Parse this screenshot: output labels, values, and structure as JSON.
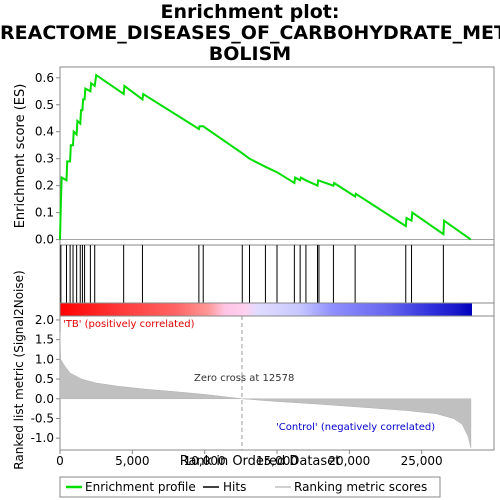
{
  "title_lines": [
    "Enrichment plot:",
    "REACTOME_DISEASES_OF_CARBOHYDRATE_META",
    "BOLISM"
  ],
  "legend": {
    "enrichment_profile": "Enrichment profile",
    "hits": "Hits",
    "ranking_metric": "Ranking metric scores"
  },
  "colors": {
    "profile": "#00dd00",
    "hits": "#000000",
    "metric": "#c0c0c0",
    "positive": "#ff0000",
    "negative": "#0000ff"
  },
  "chart_data": [
    {
      "type": "line",
      "name": "enrichment-profile",
      "ylabel": "Enrichment score (ES)",
      "ylim": [
        -0.02,
        0.64
      ],
      "yticks": [
        0.0,
        0.1,
        0.2,
        0.3,
        0.4,
        0.5,
        0.6
      ],
      "ytick_labels": [
        "0.0",
        "0.1",
        "0.2",
        "0.3",
        "0.4",
        "0.5",
        "0.6"
      ],
      "xlim": [
        0,
        30000
      ],
      "grid": false,
      "points": [
        [
          0,
          0.0
        ],
        [
          60,
          0.14
        ],
        [
          120,
          0.23
        ],
        [
          450,
          0.22
        ],
        [
          500,
          0.29
        ],
        [
          700,
          0.29
        ],
        [
          750,
          0.35
        ],
        [
          900,
          0.35
        ],
        [
          950,
          0.4
        ],
        [
          1150,
          0.39
        ],
        [
          1200,
          0.44
        ],
        [
          1400,
          0.43
        ],
        [
          1450,
          0.48
        ],
        [
          1550,
          0.48
        ],
        [
          1600,
          0.52
        ],
        [
          1700,
          0.52
        ],
        [
          1750,
          0.56
        ],
        [
          2100,
          0.55
        ],
        [
          2150,
          0.58
        ],
        [
          2400,
          0.57
        ],
        [
          2500,
          0.61
        ],
        [
          4400,
          0.54
        ],
        [
          4450,
          0.57
        ],
        [
          5700,
          0.52
        ],
        [
          5750,
          0.54
        ],
        [
          9600,
          0.41
        ],
        [
          9650,
          0.42
        ],
        [
          9900,
          0.42
        ],
        [
          12600,
          0.32
        ],
        [
          13100,
          0.3
        ],
        [
          14200,
          0.27
        ],
        [
          15000,
          0.25
        ],
        [
          16200,
          0.21
        ],
        [
          16250,
          0.23
        ],
        [
          16600,
          0.22
        ],
        [
          16650,
          0.23
        ],
        [
          17000,
          0.22
        ],
        [
          17800,
          0.2
        ],
        [
          17850,
          0.22
        ],
        [
          18900,
          0.2
        ],
        [
          18950,
          0.21
        ],
        [
          20400,
          0.16
        ],
        [
          20450,
          0.17
        ],
        [
          23900,
          0.05
        ],
        [
          23950,
          0.08
        ],
        [
          24300,
          0.07
        ],
        [
          24350,
          0.1
        ],
        [
          26500,
          0.02
        ],
        [
          26550,
          0.07
        ],
        [
          28400,
          0.0
        ]
      ]
    },
    {
      "type": "scatter",
      "name": "hits",
      "xlim": [
        0,
        30000
      ],
      "x": [
        60,
        450,
        700,
        900,
        1150,
        1400,
        1550,
        1700,
        2100,
        2400,
        4400,
        5700,
        9600,
        9900,
        12600,
        13100,
        14200,
        15000,
        16200,
        16600,
        17000,
        17800,
        17900,
        18900,
        20400,
        23900,
        24300,
        26500
      ]
    },
    {
      "type": "area",
      "name": "ranked-list-metric",
      "xlabel": "Rank in Ordered Dataset",
      "ylabel": "Ranked list metric (Signal2Noise)",
      "xlim": [
        0,
        30000
      ],
      "ylim": [
        -1.3,
        2.1
      ],
      "xticks": [
        0,
        5000,
        10000,
        15000,
        20000,
        25000
      ],
      "xtick_labels": [
        "0",
        "5,000",
        "10,000",
        "15,000",
        "20,000",
        "25,000"
      ],
      "yticks": [
        -1.0,
        -0.5,
        0.0,
        0.5,
        1.0,
        1.5,
        2.0
      ],
      "ytick_labels": [
        "-1.0",
        "-0.5",
        "0.0",
        "0.5",
        "1.0",
        "1.5",
        "2.0"
      ],
      "points": [
        [
          0,
          1.7
        ],
        [
          50,
          1.0
        ],
        [
          300,
          0.85
        ],
        [
          700,
          0.65
        ],
        [
          1500,
          0.5
        ],
        [
          2500,
          0.4
        ],
        [
          4000,
          0.32
        ],
        [
          6000,
          0.24
        ],
        [
          8000,
          0.18
        ],
        [
          10000,
          0.11
        ],
        [
          12578,
          0.0
        ],
        [
          15000,
          -0.07
        ],
        [
          18000,
          -0.14
        ],
        [
          21000,
          -0.22
        ],
        [
          24000,
          -0.3
        ],
        [
          26000,
          -0.38
        ],
        [
          27200,
          -0.5
        ],
        [
          27800,
          -0.65
        ],
        [
          28200,
          -0.95
        ],
        [
          28400,
          -1.25
        ]
      ],
      "annotations": {
        "positive": "'TB' (positively correlated)",
        "zero_cross": "Zero cross at 12578",
        "negative": "'Control' (negatively correlated)"
      },
      "zero_cross": 12578
    }
  ]
}
